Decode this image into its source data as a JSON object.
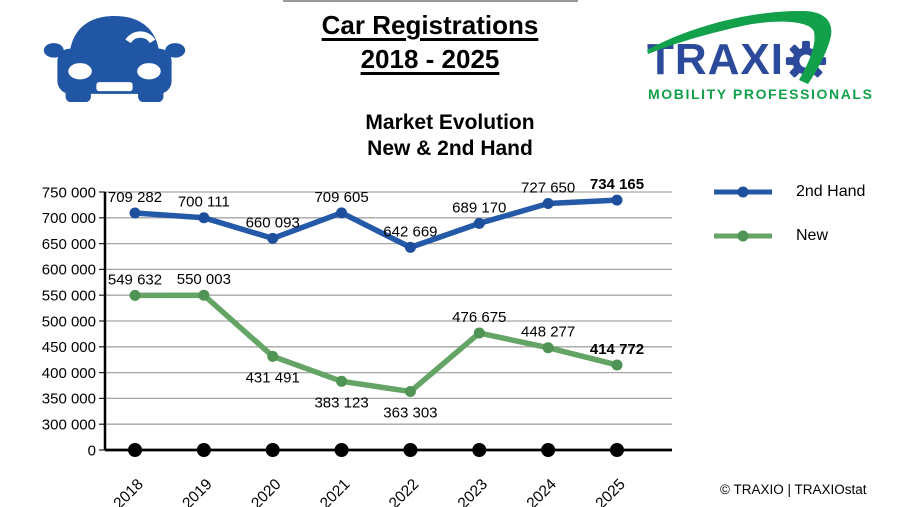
{
  "header": {
    "title_line1": "Car Registrations",
    "title_line2": "2018 - 2025",
    "logo": {
      "brand": "TRAXI",
      "brand_o": "gear-icon-as-letter-O",
      "tagline": "MOBILITY PROFESSIONALS",
      "blue": "#2C4A9B",
      "green": "#12A04B"
    }
  },
  "chart_data": {
    "type": "line",
    "title": "Market Evolution",
    "subtitle": "New & 2nd Hand",
    "categories": [
      "2018",
      "2019",
      "2020",
      "2021",
      "2022",
      "2023",
      "2024",
      "2025"
    ],
    "series": [
      {
        "name": "2nd Hand",
        "color": "#2459A8",
        "marker_color": "#1D4F9C",
        "values": [
          709282,
          700111,
          660093,
          709605,
          642669,
          689170,
          727650,
          734165
        ],
        "labels": [
          "709 282",
          "700 111",
          "660 093",
          "709 605",
          "642 669",
          "689 170",
          "727 650",
          "734 165"
        ],
        "label_positions": [
          "above",
          "above",
          "above",
          "above",
          "above",
          "above",
          "above",
          "above"
        ],
        "label_bold": [
          false,
          false,
          false,
          false,
          false,
          false,
          false,
          true
        ]
      },
      {
        "name": "New",
        "color": "#64A465",
        "marker_color": "#4F9455",
        "values": [
          549632,
          550003,
          431491,
          383123,
          363303,
          476675,
          448277,
          414772
        ],
        "labels": [
          "549 632",
          "550 003",
          "431 491",
          "383 123",
          "363 303",
          "476 675",
          "448 277",
          "414 772"
        ],
        "label_positions": [
          "above",
          "above",
          "below",
          "below",
          "below",
          "above",
          "above",
          "above"
        ],
        "label_bold": [
          false,
          false,
          false,
          false,
          false,
          false,
          false,
          true
        ]
      }
    ],
    "baseline_markers": {
      "value": 0,
      "color": "#000000"
    },
    "y_ticks": [
      "750 000",
      "700 000",
      "650 000",
      "600 000",
      "550 000",
      "500 000",
      "450 000",
      "400 000",
      "350 000",
      "300 000",
      "0"
    ],
    "y_axis": {
      "broken": true,
      "top": 750000,
      "bottom_segment": 300000,
      "interval": 50000
    },
    "grid": "horizontal",
    "gridline_color": "#A6A6A6",
    "legend_position": "right"
  },
  "footer": {
    "credit": "© TRAXIO | TRAXIOstat"
  }
}
